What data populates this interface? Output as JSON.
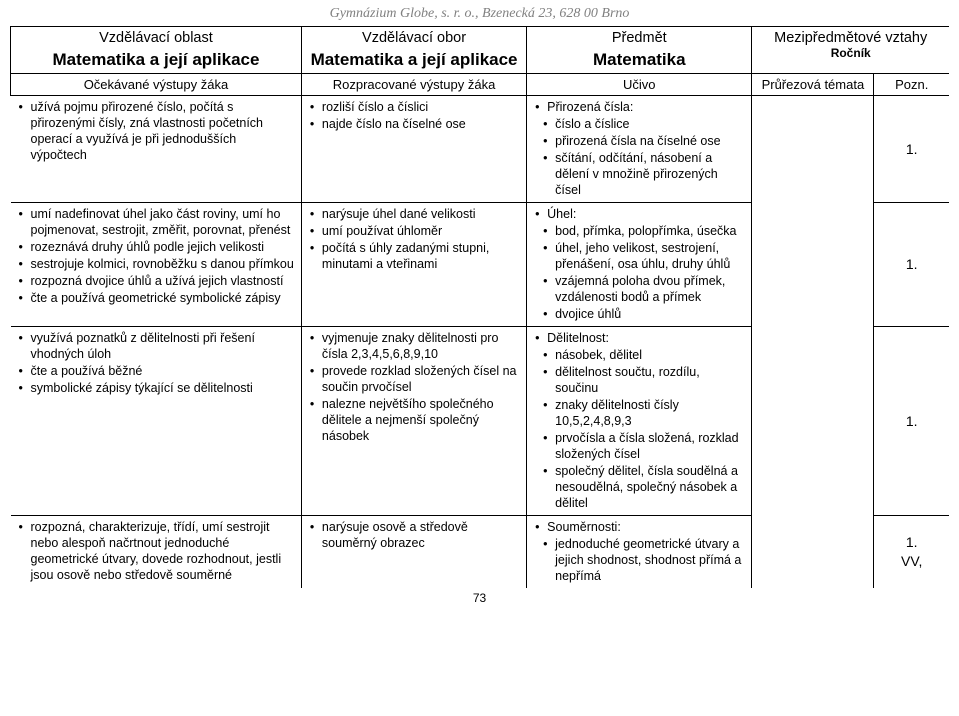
{
  "header": "Gymnázium Globe, s. r. o., Bzenecká 23, 628 00 Brno",
  "layout": {
    "col_widths_pct": [
      31,
      24,
      24,
      13,
      8
    ],
    "font": "Arial"
  },
  "top_row": {
    "col1_label": "Vzdělávací oblast",
    "col1_value": "Matematika a její aplikace",
    "col2_label": "Vzdělávací obor",
    "col2_value": "Matematika a její aplikace",
    "col3_label": "Předmět",
    "col3_value": "Matematika",
    "col45_line1": "Mezipředmětové vztahy",
    "col45_line2": "Ročník"
  },
  "row2": {
    "c1": "Očekávané výstupy žáka",
    "c2": "Rozpracované výstupy žáka",
    "c3": "Učivo",
    "c4": "Průřezová témata",
    "c5": "Pozn."
  },
  "rows": [
    {
      "col1": [
        "užívá pojmu přirozené číslo, počítá s přirozenými čísly, zná vlastnosti početních operací a využívá je při jednodušších výpočtech"
      ],
      "col2": [
        "rozliší číslo a číslici",
        "najde číslo na číselné ose"
      ],
      "col3_head": "Přirozená čísla:",
      "col3_sub": [
        "číslo a číslice",
        "přirozená čísla na číselné ose",
        "sčítání, odčítání, násobení a dělení v množině přirozených čísel"
      ],
      "pozn": "1."
    },
    {
      "col1": [
        "umí nadefinovat úhel jako část roviny, umí ho pojmenovat, sestrojit, změřit, porovnat, přenést",
        "rozeznává druhy úhlů podle jejich velikosti",
        "sestrojuje kolmici, rovnoběžku s danou přímkou",
        "rozpozná dvojice úhlů a užívá jejich vlastností",
        "čte a používá geometrické symbolické zápisy"
      ],
      "col2": [
        "narýsuje úhel dané velikosti",
        "umí používat úhloměr",
        "počítá s úhly zadanými stupni, minutami a vteřinami"
      ],
      "col3_head": "Úhel:",
      "col3_sub": [
        "bod, přímka, polopřímka, úsečka",
        "úhel, jeho velikost, sestrojení, přenášení, osa úhlu, druhy úhlů",
        "vzájemná poloha dvou přímek, vzdálenosti bodů a přímek",
        "dvojice úhlů"
      ],
      "pozn": "1."
    },
    {
      "col1": [
        "využívá poznatků z dělitelnosti při řešení vhodných úloh",
        "čte a používá běžné",
        "symbolické zápisy týkající se dělitelnosti"
      ],
      "col2": [
        "vyjmenuje znaky dělitelnosti pro čísla 2,3,4,5,6,8,9,10",
        "provede rozklad složených čísel na součin prvočísel",
        "nalezne největšího společného dělitele a nejmenší společný násobek"
      ],
      "col3_head": "Dělitelnost:",
      "col3_sub": [
        "násobek, dělitel",
        "dělitelnost součtu, rozdílu, součinu",
        "znaky dělitelnosti čísly 10,5,2,4,8,9,3",
        "prvočísla a čísla složená, rozklad složených čísel",
        "společný dělitel, čísla soudělná a nesoudělná, společný násobek a dělitel"
      ],
      "pozn": "1."
    },
    {
      "col1": [
        "rozpozná, charakterizuje, třídí, umí sestrojit nebo alespoň načrtnout jednoduché geometrické útvary, dovede rozhodnout, jestli jsou osově nebo středově souměrné"
      ],
      "col2": [
        "narýsuje osově a středově souměrný obrazec"
      ],
      "col3_head": "Souměrnosti:",
      "col3_sub": [
        "jednoduché geometrické útvary a jejich shodnost, shodnost přímá a nepřímá"
      ],
      "pozn": "1.\nVV,"
    }
  ],
  "page_number": "73"
}
